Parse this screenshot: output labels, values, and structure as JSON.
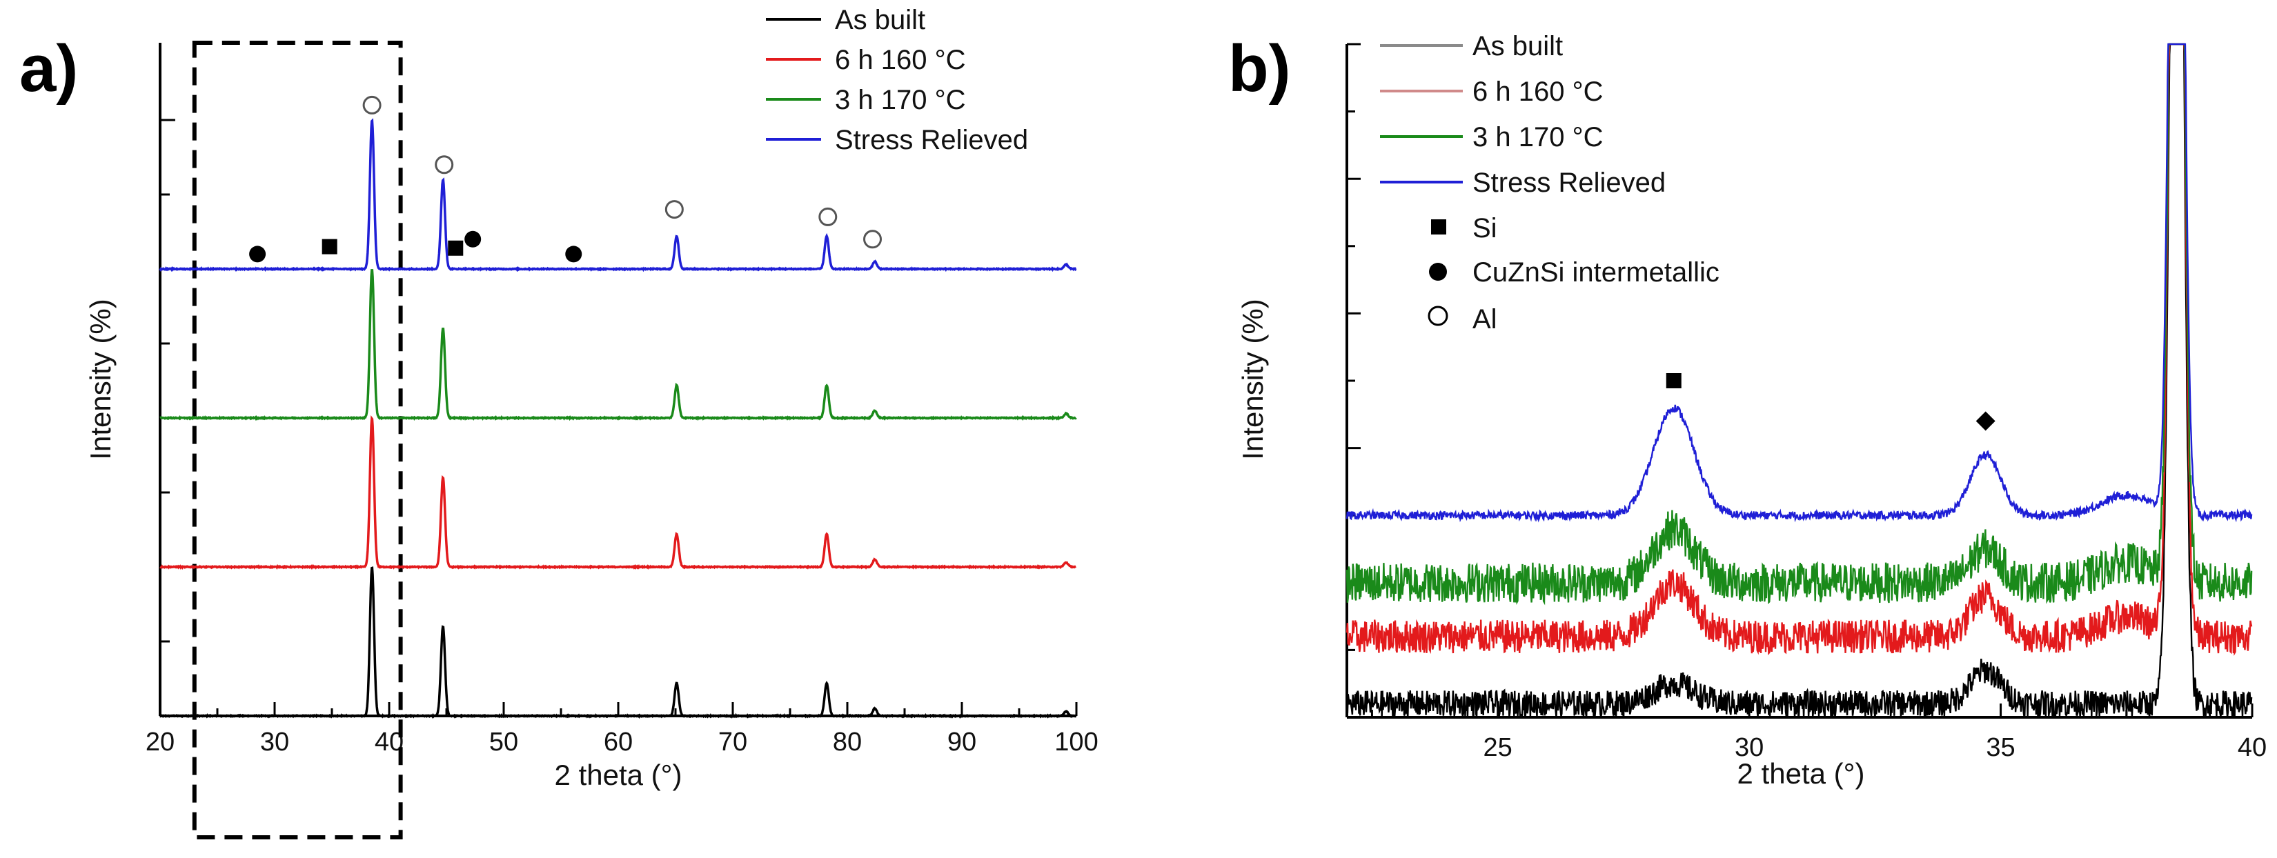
{
  "chart_data": [
    {
      "panel": "a)",
      "type": "line",
      "xlabel": "2 theta (°)",
      "ylabel": "Intensity (%)",
      "xlim": [
        20,
        100
      ],
      "xticks": [
        20,
        30,
        40,
        50,
        60,
        70,
        80,
        90,
        100
      ],
      "highlight_region": [
        23,
        41
      ],
      "legend": [
        {
          "name": "As built",
          "color": "#000000"
        },
        {
          "name": "6 h 160 °C",
          "color": "#e31a1c"
        },
        {
          "name": "3 h 170 °C",
          "color": "#1a8a1a"
        },
        {
          "name": "Stress Relieved",
          "color": "#1f1fd6"
        }
      ],
      "series": [
        {
          "name": "As built",
          "color": "#000000",
          "offset": 0
        },
        {
          "name": "6 h 160 °C",
          "color": "#e31a1c",
          "offset": 1
        },
        {
          "name": "3 h 170 °C",
          "color": "#1a8a1a",
          "offset": 2
        },
        {
          "name": "Stress Relieved",
          "color": "#1f1fd6",
          "offset": 3
        }
      ],
      "peaks": [
        {
          "two_theta": 38.5,
          "height": 1.0
        },
        {
          "two_theta": 44.7,
          "height": 0.6
        },
        {
          "two_theta": 65.1,
          "height": 0.22
        },
        {
          "two_theta": 78.2,
          "height": 0.22
        },
        {
          "two_theta": 82.4,
          "height": 0.05
        },
        {
          "two_theta": 99.1,
          "height": 0.03
        }
      ],
      "markers": [
        {
          "symbol": "filled-circle",
          "phase": "CuZnSi intermetallic",
          "two_theta": 28.5,
          "level": 0.1
        },
        {
          "symbol": "filled-square",
          "phase": "Si",
          "two_theta": 34.8,
          "level": 0.15
        },
        {
          "symbol": "open-circle",
          "phase": "Al",
          "two_theta": 38.5,
          "level": 1.1
        },
        {
          "symbol": "open-circle",
          "phase": "Al",
          "two_theta": 44.8,
          "level": 0.7
        },
        {
          "symbol": "filled-square",
          "phase": "Si",
          "two_theta": 45.8,
          "level": 0.14
        },
        {
          "symbol": "filled-circle",
          "phase": "CuZnSi intermetallic",
          "two_theta": 47.3,
          "level": 0.2
        },
        {
          "symbol": "filled-circle",
          "phase": "CuZnSi intermetallic",
          "two_theta": 56.1,
          "level": 0.1
        },
        {
          "symbol": "open-circle",
          "phase": "Al",
          "two_theta": 64.9,
          "level": 0.4
        },
        {
          "symbol": "open-circle",
          "phase": "Al",
          "two_theta": 78.3,
          "level": 0.35
        },
        {
          "symbol": "open-circle",
          "phase": "Al",
          "two_theta": 82.2,
          "level": 0.2
        }
      ]
    },
    {
      "panel": "b)",
      "type": "line",
      "xlabel": "2 theta (°)",
      "ylabel": "Intensity (%)",
      "xlim": [
        22,
        40
      ],
      "xticks": [
        25,
        30,
        35,
        40
      ],
      "legend": [
        {
          "name": "As built",
          "color": "#8a8a8a"
        },
        {
          "name": "6 h 160 °C",
          "color": "#d08a8a"
        },
        {
          "name": "3 h 170 °C",
          "color": "#1a8a1a"
        },
        {
          "name": "Stress Relieved",
          "color": "#1f1fd6"
        }
      ],
      "phase_legend": [
        {
          "symbol": "filled-square",
          "label": "Si"
        },
        {
          "symbol": "filled-circle",
          "label": "CuZnSi intermetallic"
        },
        {
          "symbol": "open-circle",
          "label": "Al"
        }
      ],
      "series": [
        {
          "name": "As built",
          "color": "#000000",
          "baseline": 0.02,
          "noise": 0.04
        },
        {
          "name": "6 h 160 °C",
          "color": "#e31a1c",
          "baseline": 0.12,
          "noise": 0.05
        },
        {
          "name": "3 h 170 °C",
          "color": "#1a8a1a",
          "baseline": 0.2,
          "noise": 0.06
        },
        {
          "name": "Stress Relieved",
          "color": "#1f1fd6",
          "baseline": 0.3,
          "noise": 0.012
        }
      ],
      "peaks": [
        {
          "two_theta": 28.5,
          "heights": [
            0.03,
            0.08,
            0.08,
            0.16
          ],
          "width": 0.4
        },
        {
          "two_theta": 34.7,
          "heights": [
            0.05,
            0.06,
            0.05,
            0.09
          ],
          "width": 0.3
        },
        {
          "two_theta": 37.5,
          "heights": [
            0.0,
            0.03,
            0.03,
            0.03
          ],
          "width": 0.5
        },
        {
          "two_theta": 38.5,
          "heights": [
            2.0,
            2.0,
            2.0,
            2.0
          ],
          "width": 0.12
        }
      ],
      "markers": [
        {
          "symbol": "filled-square",
          "phase": "Si",
          "two_theta": 28.5,
          "level": 0.5
        },
        {
          "symbol": "filled-diamond",
          "phase": "",
          "two_theta": 34.7,
          "level": 0.44
        }
      ]
    }
  ]
}
